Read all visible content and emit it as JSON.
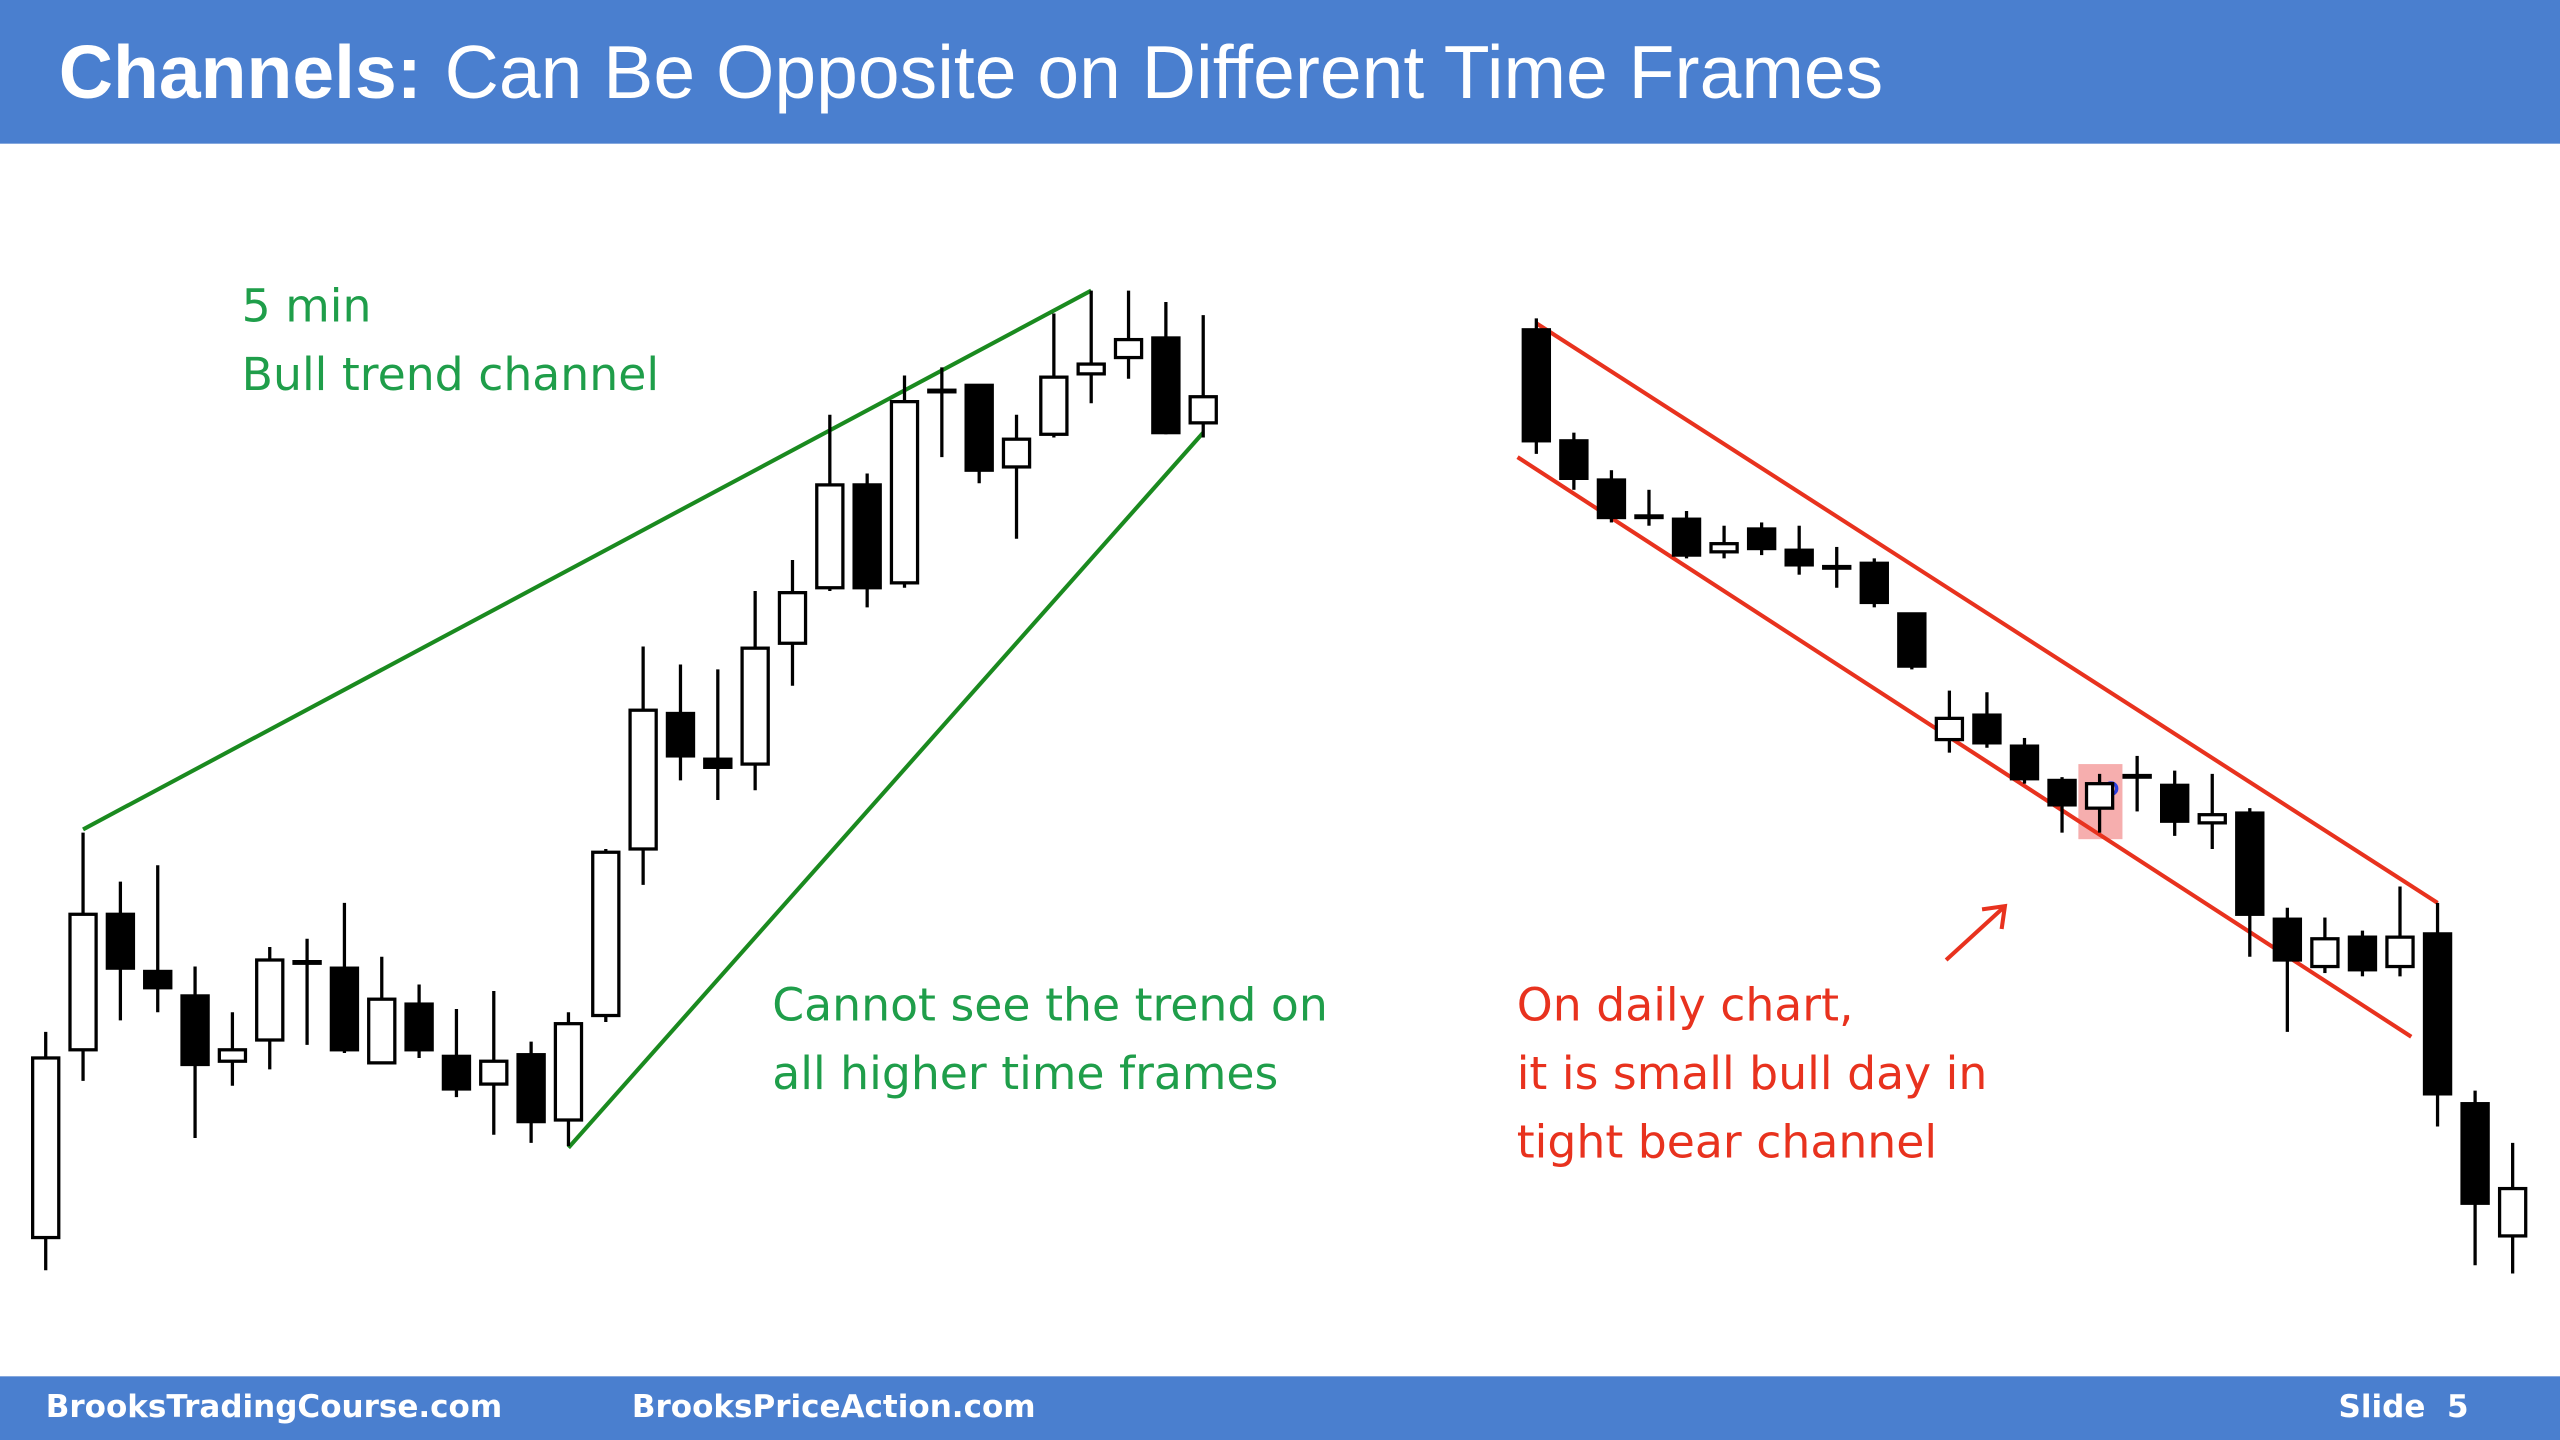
{
  "header": {
    "title_bold": "Channels:",
    "title": "Can Be Opposite on Different Time Frames"
  },
  "chart_data": [
    {
      "type": "candlestick",
      "ylim": [
        0,
        700
      ],
      "annotation_color": "#1f9e4a",
      "channel_color": "#1a8a1f",
      "open": [
        42,
        157,
        240,
        205,
        190,
        150,
        163,
        211,
        207,
        149,
        185,
        153,
        136,
        154,
        114,
        178,
        280,
        363,
        335,
        332,
        406,
        440,
        503,
        443,
        561,
        564,
        514,
        534,
        571,
        581,
        593,
        541
      ],
      "close": [
        152,
        240,
        207,
        195,
        148,
        157,
        212,
        210,
        157,
        188,
        157,
        133,
        150,
        113,
        173,
        278,
        365,
        337,
        330,
        403,
        437,
        503,
        440,
        554,
        561,
        512,
        531,
        569,
        577,
        592,
        535,
        557
      ],
      "high": [
        168,
        290,
        260,
        270,
        208,
        180,
        220,
        225,
        247,
        214,
        197,
        182,
        193,
        162,
        180,
        280,
        404,
        393,
        390,
        438,
        457,
        546,
        510,
        570,
        575,
        564,
        546,
        608,
        622,
        622,
        615,
        607
      ],
      "low": [
        22,
        138,
        175,
        180,
        103,
        135,
        145,
        160,
        155,
        149,
        152,
        128,
        105,
        100,
        98,
        174,
        258,
        322,
        310,
        316,
        380,
        438,
        428,
        440,
        520,
        504,
        470,
        532,
        553,
        568,
        534,
        532
      ],
      "channel_lines": [
        {
          "points": [
            [
              1,
              292
            ],
            [
              28,
              622
            ]
          ]
        },
        {
          "points": [
            [
              14,
              97
            ],
            [
              31,
              535
            ]
          ]
        }
      ],
      "annotations": [
        "5 min",
        "Bull trend channel",
        "Cannot see the trend on",
        "all higher time frames"
      ]
    },
    {
      "type": "candlestick",
      "ylim": [
        0,
        700
      ],
      "annotation_color": "#e8321e",
      "channel_color": "#e8321e",
      "open": [
        598,
        530,
        506,
        484,
        482,
        462,
        476,
        463,
        453,
        455,
        424,
        347,
        362,
        343,
        322,
        305,
        324,
        319,
        296,
        302,
        237,
        208,
        226,
        208,
        228,
        124,
        43
      ],
      "close": [
        530,
        507,
        483,
        483,
        460,
        467,
        464,
        454,
        452,
        431,
        392,
        360,
        345,
        323,
        307,
        320,
        325,
        297,
        301,
        240,
        212,
        225,
        206,
        226,
        130,
        63,
        72
      ],
      "high": [
        605,
        535,
        512,
        500,
        487,
        478,
        480,
        478,
        465,
        458,
        424,
        377,
        376,
        348,
        324,
        326,
        337,
        328,
        326,
        305,
        244,
        238,
        230,
        257,
        247,
        132,
        100
      ],
      "low": [
        522,
        500,
        480,
        478,
        458,
        458,
        460,
        448,
        440,
        428,
        390,
        339,
        342,
        320,
        290,
        290,
        303,
        288,
        280,
        214,
        168,
        204,
        202,
        202,
        110,
        25,
        20
      ],
      "channel_lines": [
        {
          "points": [
            [
              0,
              602
            ],
            [
              24,
              247
            ]
          ]
        },
        {
          "points": [
            [
              -0.5,
              520
            ],
            [
              23.3,
              165
            ]
          ]
        }
      ],
      "annotations": [
        "On daily chart,",
        "it is small bull day in",
        "tight bear channel"
      ]
    }
  ],
  "footer": {
    "left": "BrooksTradingCourse.com",
    "center": "BrooksPriceAction.com",
    "right": "Slide  5"
  }
}
